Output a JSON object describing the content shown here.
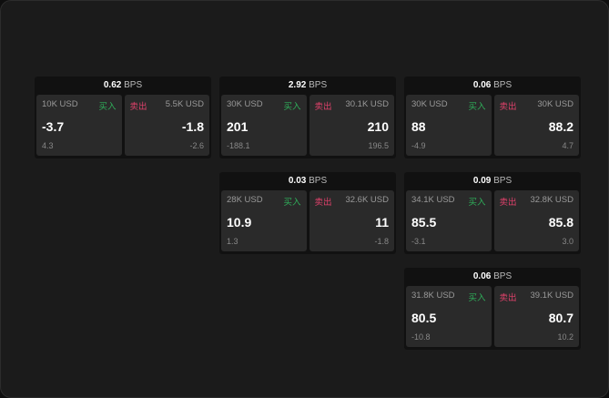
{
  "labels": {
    "unit": "BPS",
    "buy": "买入",
    "sell": "卖出"
  },
  "colors": {
    "buy": "#2fae5a",
    "sell": "#e0416b"
  },
  "cards": [
    {
      "bps": "0.62",
      "bid_size": "10K USD",
      "bid": "-3.7",
      "bid_sub": "4.3",
      "ask_size": "5.5K USD",
      "ask": "-1.8",
      "ask_sub": "-2.6"
    },
    {
      "bps": "2.92",
      "bid_size": "30K USD",
      "bid": "201",
      "bid_sub": "-188.1",
      "ask_size": "30.1K USD",
      "ask": "210",
      "ask_sub": "196.5"
    },
    {
      "bps": "0.06",
      "bid_size": "30K USD",
      "bid": "88",
      "bid_sub": "-4.9",
      "ask_size": "30K USD",
      "ask": "88.2",
      "ask_sub": "4.7"
    },
    {
      "bps": "0.03",
      "bid_size": "28K USD",
      "bid": "10.9",
      "bid_sub": "1.3",
      "ask_size": "32.6K USD",
      "ask": "11",
      "ask_sub": "-1.8"
    },
    {
      "bps": "0.09",
      "bid_size": "34.1K USD",
      "bid": "85.5",
      "bid_sub": "-3.1",
      "ask_size": "32.8K USD",
      "ask": "85.8",
      "ask_sub": "3.0"
    },
    {
      "bps": "0.06",
      "bid_size": "31.8K USD",
      "bid": "80.5",
      "bid_sub": "-10.8",
      "ask_size": "39.1K USD",
      "ask": "80.7",
      "ask_sub": "10.2"
    }
  ]
}
